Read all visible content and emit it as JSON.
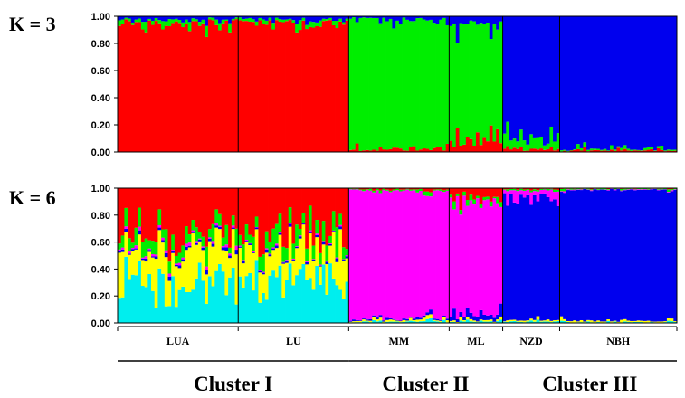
{
  "chart_data": {
    "type": "bar",
    "stacked": true,
    "ylim": [
      0,
      1
    ],
    "yticks": [
      "0.00",
      "0.20",
      "0.40",
      "0.60",
      "0.80",
      "1.00"
    ],
    "colors": {
      "red": "#ff0000",
      "green": "#00ee00",
      "blue": "#0000ee",
      "magenta": "#ff00ff",
      "yellow": "#ffff00",
      "cyan": "#00eeee"
    },
    "populations": [
      {
        "name": "LUA",
        "n": 36
      },
      {
        "name": "LU",
        "n": 33
      },
      {
        "name": "MM",
        "n": 30
      },
      {
        "name": "ML",
        "n": 16
      },
      {
        "name": "NZD",
        "n": 17
      },
      {
        "name": "NBH",
        "n": 35
      }
    ],
    "clusters": [
      {
        "label": "Cluster I",
        "populations": [
          "LUA",
          "LU"
        ]
      },
      {
        "label": "Cluster II",
        "populations": [
          "MM",
          "ML"
        ]
      },
      {
        "label": "Cluster III",
        "populations": [
          "NZD",
          "NBH"
        ]
      }
    ],
    "panels": [
      {
        "label": "K = 3",
        "order": [
          "red",
          "green",
          "blue"
        ],
        "pop_profiles": [
          [
            0.98,
            0.01,
            0.01
          ],
          [
            0.98,
            0.01,
            0.01
          ],
          [
            0.01,
            0.98,
            0.01
          ],
          [
            0.04,
            0.93,
            0.03
          ],
          [
            0.01,
            0.04,
            0.95
          ],
          [
            0.005,
            0.005,
            0.99
          ]
        ]
      },
      {
        "label": "K = 6",
        "order": [
          "cyan",
          "yellow",
          "blue",
          "magenta",
          "green",
          "red"
        ],
        "pop_profiles": [
          [
            0.38,
            0.15,
            0.01,
            0.01,
            0.06,
            0.39
          ],
          [
            0.22,
            0.16,
            0.01,
            0.005,
            0.08,
            0.525
          ],
          [
            0.005,
            0.005,
            0.005,
            0.975,
            0.005,
            0.005
          ],
          [
            0.005,
            0.005,
            0.02,
            0.92,
            0.015,
            0.035
          ],
          [
            0.005,
            0.005,
            0.95,
            0.03,
            0.005,
            0.005
          ],
          [
            0.003,
            0.005,
            0.985,
            0.002,
            0.003,
            0.002
          ]
        ]
      }
    ]
  }
}
